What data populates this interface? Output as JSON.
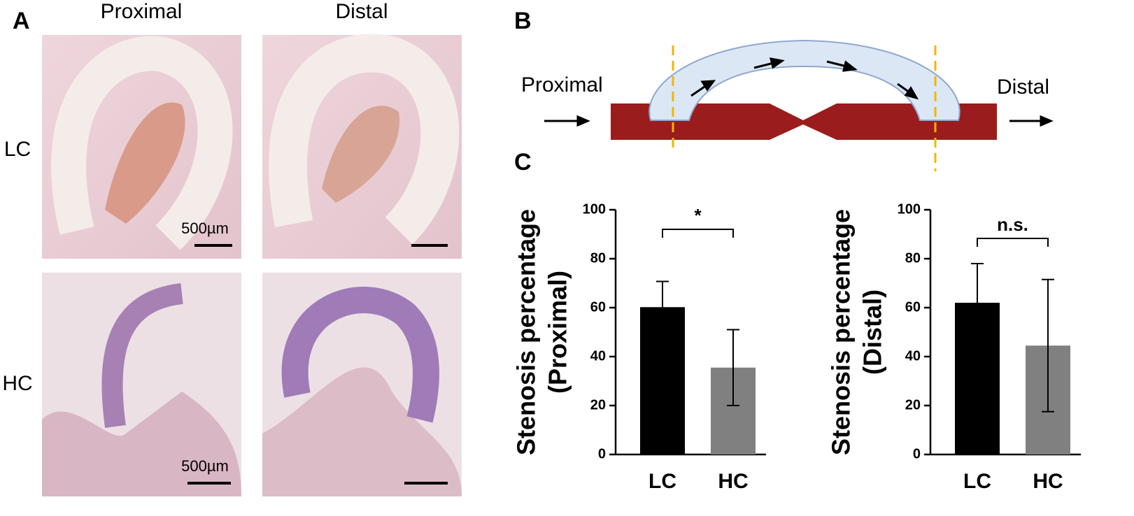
{
  "panels": {
    "A": {
      "label": "A",
      "columns": [
        "Proximal",
        "Distal"
      ],
      "rows": [
        "LC",
        "HC"
      ],
      "scale_bar": "500µm"
    },
    "B": {
      "label": "B",
      "proximal": "Proximal",
      "distal": "Distal"
    },
    "C": {
      "label": "C"
    }
  },
  "chart_data": [
    {
      "type": "bar",
      "y_label": [
        "Stenosis percentage",
        "(Proximal)"
      ],
      "categories": [
        "LC",
        "HC"
      ],
      "values": [
        60.2,
        35.5
      ],
      "errors": [
        10.5,
        15.5
      ],
      "colors": [
        "#000000",
        "#808080"
      ],
      "ylim": [
        0,
        100
      ],
      "yticks": [
        0,
        20,
        40,
        60,
        80,
        100
      ],
      "annotation": "*"
    },
    {
      "type": "bar",
      "y_label": [
        "Stenosis percentage",
        "(Distal)"
      ],
      "categories": [
        "LC",
        "HC"
      ],
      "values": [
        62,
        44.5
      ],
      "errors": [
        16,
        27
      ],
      "colors": [
        "#000000",
        "#808080"
      ],
      "ylim": [
        0,
        100
      ],
      "yticks": [
        0,
        20,
        40,
        60,
        80,
        100
      ],
      "annotation": "n.s."
    }
  ]
}
